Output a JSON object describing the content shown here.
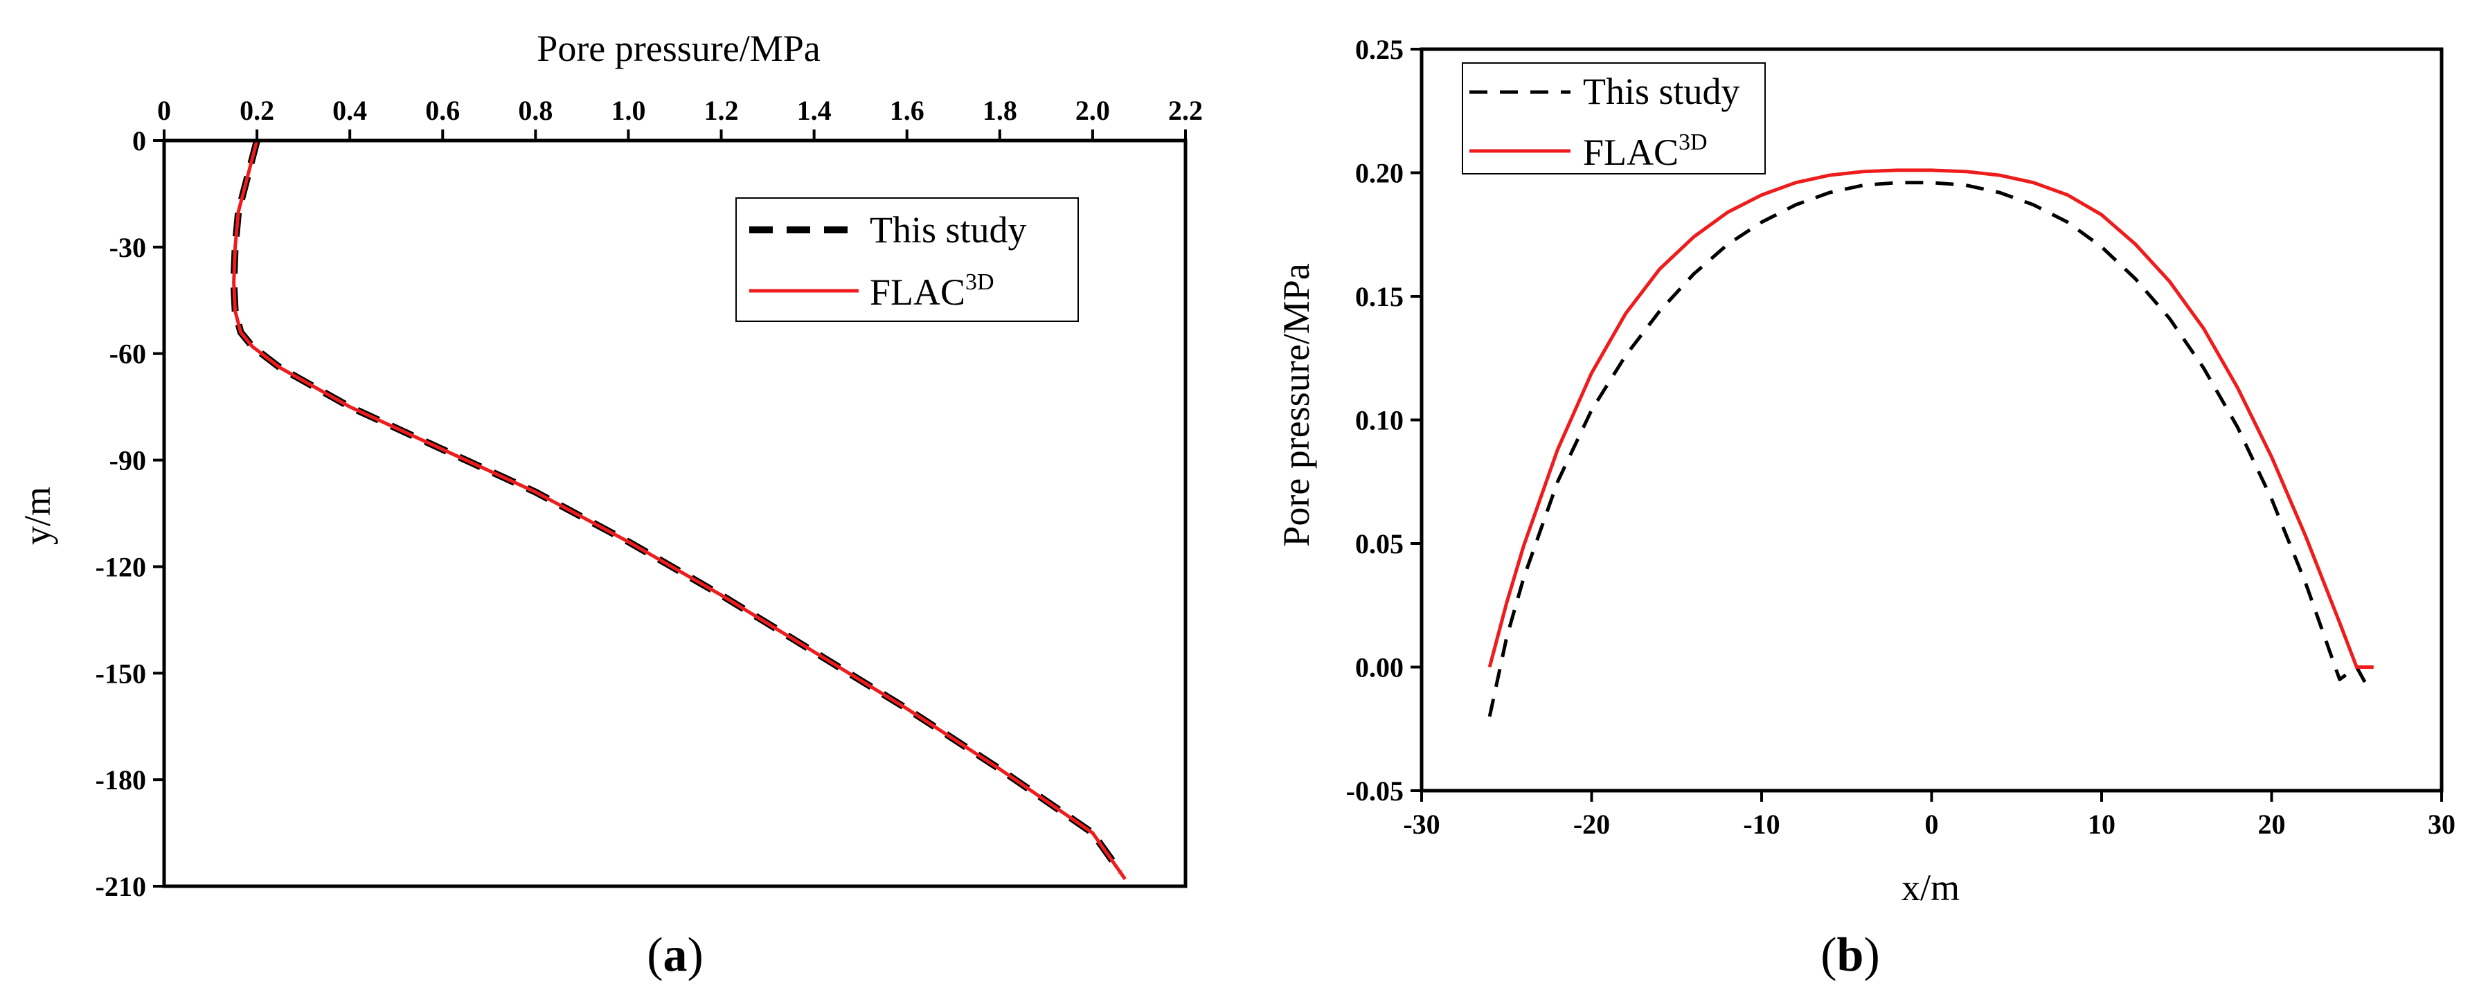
{
  "colors": {
    "this_study": "#000000",
    "flac3d": "#ee1c1c",
    "axis": "#000000"
  },
  "chart_data": [
    {
      "panel": "a",
      "caption": "(a)",
      "caption_letter": "a",
      "type": "line",
      "xlabel": "Pore pressure/MPa",
      "ylabel": "y/m",
      "xaxis_position": "top",
      "xlim": [
        0,
        2.2
      ],
      "ylim": [
        -210,
        0
      ],
      "xticks": [
        0,
        0.2,
        0.4,
        0.6,
        0.8,
        1.0,
        1.2,
        1.4,
        1.6,
        1.8,
        2.0,
        2.2
      ],
      "xtick_labels": [
        "0",
        "0.2",
        "0.4",
        "0.6",
        "0.8",
        "1.0",
        "1.2",
        "1.4",
        "1.6",
        "1.8",
        "2.0",
        "2.2"
      ],
      "yticks": [
        0,
        -30,
        -60,
        -90,
        -120,
        -150,
        -180,
        -210
      ],
      "ytick_labels": [
        "0",
        "-30",
        "-60",
        "-90",
        "-120",
        "-150",
        "-180",
        "-210"
      ],
      "legend_position": "top-right",
      "series": [
        {
          "name": "This study",
          "name_main": "This study",
          "name_sup": "",
          "style": "dashed-thick",
          "x": [
            0.2,
            0.18,
            0.16,
            0.153,
            0.15,
            0.153,
            0.165,
            0.19,
            0.25,
            0.4,
            0.6,
            0.8,
            1.0,
            1.2,
            1.4,
            1.6,
            1.8,
            2.0,
            2.06
          ],
          "y": [
            0,
            -10,
            -20,
            -30,
            -40,
            -48,
            -54,
            -58,
            -64,
            -75,
            -87,
            -99,
            -113,
            -128,
            -144,
            -160,
            -177,
            -195,
            -206
          ]
        },
        {
          "name": "FLAC3D",
          "name_main": "FLAC",
          "name_sup": "3D",
          "style": "solid",
          "x": [
            0.2,
            0.18,
            0.16,
            0.153,
            0.15,
            0.153,
            0.165,
            0.19,
            0.25,
            0.4,
            0.6,
            0.8,
            1.0,
            1.2,
            1.4,
            1.6,
            1.8,
            2.0,
            2.07
          ],
          "y": [
            0,
            -10,
            -20,
            -30,
            -40,
            -48,
            -54,
            -58,
            -64,
            -75,
            -87,
            -99,
            -113,
            -128,
            -144,
            -160,
            -177,
            -195,
            -208
          ]
        }
      ]
    },
    {
      "panel": "b",
      "caption": "(b)",
      "caption_letter": "b",
      "type": "line",
      "xlabel": "x/m",
      "ylabel": "Pore pressure/MPa",
      "xaxis_position": "bottom",
      "xlim": [
        -30,
        30
      ],
      "ylim": [
        -0.05,
        0.25
      ],
      "xticks": [
        -30,
        -20,
        -10,
        0,
        10,
        20,
        30
      ],
      "xtick_labels": [
        "-30",
        "-20",
        "-10",
        "0",
        "10",
        "20",
        "30"
      ],
      "yticks": [
        -0.05,
        0,
        0.05,
        0.1,
        0.15,
        0.2,
        0.25
      ],
      "ytick_labels": [
        "-0.05",
        "0.00",
        "0.05",
        "0.10",
        "0.15",
        "0.20",
        "0.25"
      ],
      "legend_position": "top-left",
      "series": [
        {
          "name": "This study",
          "name_main": "This study",
          "name_sup": "",
          "style": "dashed",
          "x": [
            -26,
            -25,
            -24,
            -22,
            -20,
            -18,
            -16,
            -14,
            -12,
            -10,
            -8,
            -6,
            -4,
            -2,
            0,
            2,
            4,
            6,
            8,
            10,
            12,
            14,
            16,
            18,
            20,
            22,
            24,
            25,
            25.8
          ],
          "y": [
            -0.02,
            0.012,
            0.036,
            0.075,
            0.104,
            0.126,
            0.144,
            0.159,
            0.171,
            0.18,
            0.187,
            0.192,
            0.195,
            0.196,
            0.196,
            0.195,
            0.192,
            0.187,
            0.18,
            0.17,
            0.157,
            0.141,
            0.121,
            0.097,
            0.068,
            0.034,
            -0.005,
            0.0,
            -0.01
          ]
        },
        {
          "name": "FLAC3D",
          "name_main": "FLAC",
          "name_sup": "3D",
          "style": "solid",
          "x": [
            -26,
            -25,
            -24,
            -22,
            -20,
            -18,
            -16,
            -14,
            -12,
            -10,
            -8,
            -6,
            -4,
            -2,
            0,
            2,
            4,
            6,
            8,
            10,
            12,
            14,
            16,
            18,
            20,
            22,
            24,
            25,
            26
          ],
          "y": [
            0.0,
            0.026,
            0.049,
            0.088,
            0.119,
            0.143,
            0.161,
            0.174,
            0.184,
            0.191,
            0.196,
            0.199,
            0.2005,
            0.201,
            0.201,
            0.2005,
            0.199,
            0.196,
            0.191,
            0.183,
            0.171,
            0.156,
            0.137,
            0.113,
            0.085,
            0.053,
            0.018,
            0.0,
            0.0
          ]
        }
      ]
    }
  ]
}
